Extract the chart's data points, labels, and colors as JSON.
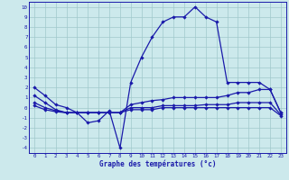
{
  "xlabel": "Graphe des températures (°c)",
  "xlim": [
    -0.5,
    23.5
  ],
  "ylim": [
    -4.5,
    10.5
  ],
  "yticks": [
    10,
    9,
    8,
    7,
    6,
    5,
    4,
    3,
    2,
    1,
    0,
    -1,
    -2,
    -3,
    -4
  ],
  "xticks": [
    0,
    1,
    2,
    3,
    4,
    5,
    6,
    7,
    8,
    9,
    10,
    11,
    12,
    13,
    14,
    15,
    16,
    17,
    18,
    19,
    20,
    21,
    22,
    23
  ],
  "bg_color": "#cce9ec",
  "grid_color": "#a0c8cc",
  "line_color": "#1a1aaa",
  "line1_x": [
    0,
    1,
    2,
    3,
    4,
    5,
    6,
    7,
    8,
    9,
    10,
    11,
    12,
    13,
    14,
    15,
    16,
    17,
    18,
    19,
    20,
    21,
    22,
    23
  ],
  "line1_y": [
    2.0,
    1.2,
    0.3,
    0.0,
    -0.5,
    -1.5,
    -1.3,
    -0.3,
    -4.0,
    2.5,
    5.0,
    7.0,
    8.5,
    9.0,
    9.0,
    10.0,
    9.0,
    8.5,
    2.5,
    2.5,
    2.5,
    2.5,
    1.8,
    -0.5
  ],
  "line2_x": [
    0,
    1,
    2,
    3,
    4,
    5,
    6,
    7,
    8,
    9,
    10,
    11,
    12,
    13,
    14,
    15,
    16,
    17,
    18,
    19,
    20,
    21,
    22,
    23
  ],
  "line2_y": [
    1.2,
    0.5,
    -0.2,
    -0.5,
    -0.5,
    -0.5,
    -0.5,
    -0.5,
    -0.5,
    0.3,
    0.5,
    0.7,
    0.8,
    1.0,
    1.0,
    1.0,
    1.0,
    1.0,
    1.2,
    1.5,
    1.5,
    1.8,
    1.8,
    -0.5
  ],
  "line3_x": [
    0,
    1,
    2,
    3,
    4,
    5,
    6,
    7,
    8,
    9,
    10,
    11,
    12,
    13,
    14,
    15,
    16,
    17,
    18,
    19,
    20,
    21,
    22,
    23
  ],
  "line3_y": [
    0.5,
    0.0,
    -0.3,
    -0.5,
    -0.5,
    -0.5,
    -0.5,
    -0.5,
    -0.5,
    0.0,
    0.0,
    0.0,
    0.2,
    0.2,
    0.2,
    0.2,
    0.3,
    0.3,
    0.3,
    0.5,
    0.5,
    0.5,
    0.5,
    -0.7
  ],
  "line4_x": [
    0,
    1,
    2,
    3,
    4,
    5,
    6,
    7,
    8,
    9,
    10,
    11,
    12,
    13,
    14,
    15,
    16,
    17,
    18,
    19,
    20,
    21,
    22,
    23
  ],
  "line4_y": [
    0.2,
    -0.2,
    -0.4,
    -0.5,
    -0.5,
    -0.5,
    -0.5,
    -0.5,
    -0.5,
    -0.2,
    -0.2,
    -0.2,
    0.0,
    0.0,
    0.0,
    0.0,
    0.0,
    0.0,
    0.0,
    0.0,
    0.0,
    0.0,
    0.0,
    -0.8
  ]
}
